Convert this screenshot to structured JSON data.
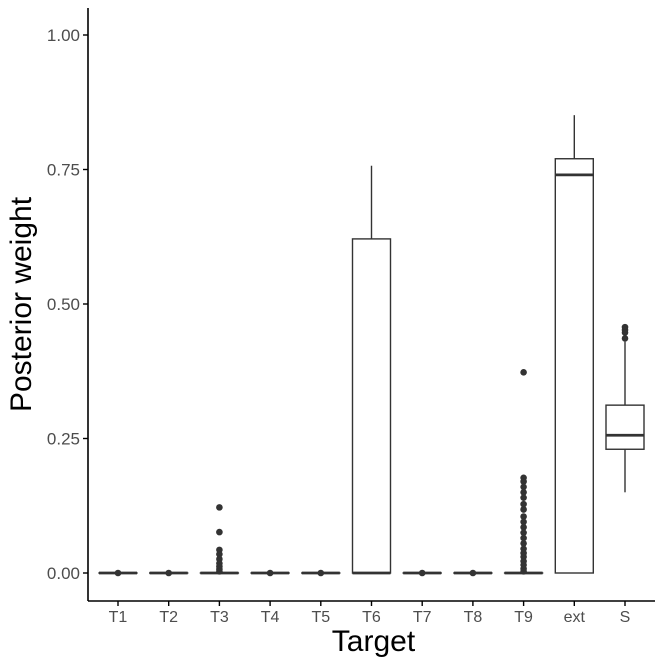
{
  "chart_data": {
    "type": "boxplot",
    "title": "",
    "xlabel": "Target",
    "ylabel": "Posterior weight",
    "ylim": [
      -0.05,
      1.05
    ],
    "yticks": [
      0.0,
      0.25,
      0.5,
      0.75,
      1.0
    ],
    "ytick_labels": [
      "0.00",
      "0.25",
      "0.50",
      "0.75",
      "1.00"
    ],
    "grid": false,
    "legend": "none",
    "colors": {
      "box_fill": "#ffffff",
      "box_stroke": "#333333",
      "outlier": "#333333",
      "axis": "#000000",
      "tick_label": "#4d4d4d"
    },
    "categories": [
      "T1",
      "T2",
      "T3",
      "T4",
      "T5",
      "T6",
      "T7",
      "T8",
      "T9",
      "ext",
      "S"
    ],
    "boxes": [
      {
        "category": "T1",
        "lower_whisker": 0.0,
        "q1": 0.0,
        "median": 0.0,
        "q3": 0.0,
        "upper_whisker": 0.0,
        "outliers": [
          0.0
        ]
      },
      {
        "category": "T2",
        "lower_whisker": 0.0,
        "q1": 0.0,
        "median": 0.0,
        "q3": 0.0,
        "upper_whisker": 0.0,
        "outliers": [
          0.0
        ]
      },
      {
        "category": "T3",
        "lower_whisker": 0.0,
        "q1": 0.0,
        "median": 0.0,
        "q3": 0.0,
        "upper_whisker": 0.0,
        "outliers": [
          0.122,
          0.076,
          0.043,
          0.035,
          0.026,
          0.018,
          0.012,
          0.007,
          0.003
        ]
      },
      {
        "category": "T4",
        "lower_whisker": 0.0,
        "q1": 0.0,
        "median": 0.0,
        "q3": 0.0,
        "upper_whisker": 0.0,
        "outliers": [
          0.0
        ]
      },
      {
        "category": "T5",
        "lower_whisker": 0.0,
        "q1": 0.0,
        "median": 0.0,
        "q3": 0.0,
        "upper_whisker": 0.0,
        "outliers": [
          0.0
        ]
      },
      {
        "category": "T6",
        "lower_whisker": 0.0,
        "q1": 0.0,
        "median": 0.0,
        "q3": 0.621,
        "upper_whisker": 0.757,
        "outliers": []
      },
      {
        "category": "T7",
        "lower_whisker": 0.0,
        "q1": 0.0,
        "median": 0.0,
        "q3": 0.0,
        "upper_whisker": 0.0,
        "outliers": [
          0.0
        ]
      },
      {
        "category": "T8",
        "lower_whisker": 0.0,
        "q1": 0.0,
        "median": 0.0,
        "q3": 0.0,
        "upper_whisker": 0.0,
        "outliers": [
          0.0
        ]
      },
      {
        "category": "T9",
        "lower_whisker": 0.0,
        "q1": 0.0,
        "median": 0.0,
        "q3": 0.0,
        "upper_whisker": 0.0,
        "outliers": [
          0.373,
          0.177,
          0.17,
          0.16,
          0.15,
          0.14,
          0.128,
          0.118,
          0.105,
          0.095,
          0.085,
          0.075,
          0.065,
          0.055,
          0.045,
          0.037,
          0.03,
          0.022,
          0.015,
          0.008,
          0.003
        ]
      },
      {
        "category": "ext",
        "lower_whisker": 0.0,
        "q1": 0.0,
        "median": 0.74,
        "q3": 0.77,
        "upper_whisker": 0.851,
        "outliers": []
      },
      {
        "category": "S",
        "lower_whisker": 0.15,
        "q1": 0.23,
        "median": 0.256,
        "q3": 0.312,
        "upper_whisker": 0.43,
        "outliers": [
          0.457,
          0.452,
          0.447,
          0.436
        ]
      }
    ]
  }
}
